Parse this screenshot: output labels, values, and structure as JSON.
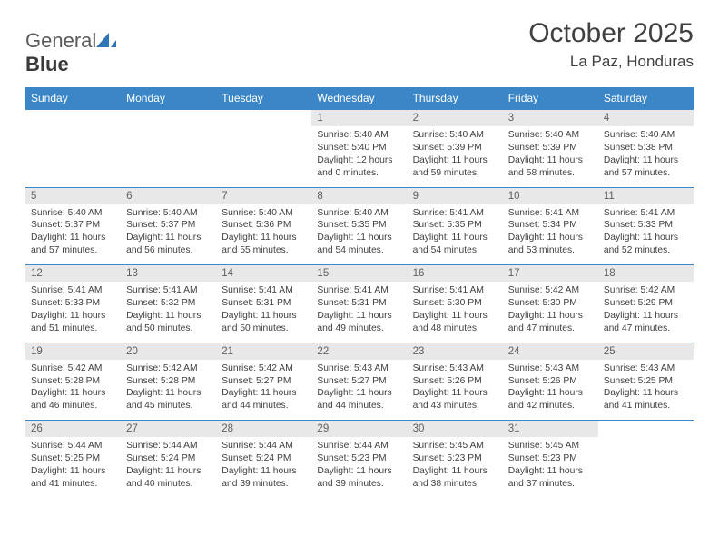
{
  "brand": {
    "part1": "General",
    "part2": "Blue"
  },
  "title": "October 2025",
  "location": "La Paz, Honduras",
  "colors": {
    "header_bg": "#3b86c6",
    "header_text": "#ffffff",
    "daynum_bg": "#e8e8e8",
    "daynum_text": "#606060",
    "body_text": "#404040",
    "divider": "#3b86c6",
    "logo_gray": "#5a5a5a",
    "logo_blue": "#2f74b5"
  },
  "dayNames": [
    "Sunday",
    "Monday",
    "Tuesday",
    "Wednesday",
    "Thursday",
    "Friday",
    "Saturday"
  ],
  "weeks": [
    {
      "nums": [
        "",
        "",
        "",
        "1",
        "2",
        "3",
        "4"
      ],
      "cells": [
        null,
        null,
        null,
        {
          "sunrise": "Sunrise: 5:40 AM",
          "sunset": "Sunset: 5:40 PM",
          "day1": "Daylight: 12 hours",
          "day2": "and 0 minutes."
        },
        {
          "sunrise": "Sunrise: 5:40 AM",
          "sunset": "Sunset: 5:39 PM",
          "day1": "Daylight: 11 hours",
          "day2": "and 59 minutes."
        },
        {
          "sunrise": "Sunrise: 5:40 AM",
          "sunset": "Sunset: 5:39 PM",
          "day1": "Daylight: 11 hours",
          "day2": "and 58 minutes."
        },
        {
          "sunrise": "Sunrise: 5:40 AM",
          "sunset": "Sunset: 5:38 PM",
          "day1": "Daylight: 11 hours",
          "day2": "and 57 minutes."
        }
      ]
    },
    {
      "nums": [
        "5",
        "6",
        "7",
        "8",
        "9",
        "10",
        "11"
      ],
      "cells": [
        {
          "sunrise": "Sunrise: 5:40 AM",
          "sunset": "Sunset: 5:37 PM",
          "day1": "Daylight: 11 hours",
          "day2": "and 57 minutes."
        },
        {
          "sunrise": "Sunrise: 5:40 AM",
          "sunset": "Sunset: 5:37 PM",
          "day1": "Daylight: 11 hours",
          "day2": "and 56 minutes."
        },
        {
          "sunrise": "Sunrise: 5:40 AM",
          "sunset": "Sunset: 5:36 PM",
          "day1": "Daylight: 11 hours",
          "day2": "and 55 minutes."
        },
        {
          "sunrise": "Sunrise: 5:40 AM",
          "sunset": "Sunset: 5:35 PM",
          "day1": "Daylight: 11 hours",
          "day2": "and 54 minutes."
        },
        {
          "sunrise": "Sunrise: 5:41 AM",
          "sunset": "Sunset: 5:35 PM",
          "day1": "Daylight: 11 hours",
          "day2": "and 54 minutes."
        },
        {
          "sunrise": "Sunrise: 5:41 AM",
          "sunset": "Sunset: 5:34 PM",
          "day1": "Daylight: 11 hours",
          "day2": "and 53 minutes."
        },
        {
          "sunrise": "Sunrise: 5:41 AM",
          "sunset": "Sunset: 5:33 PM",
          "day1": "Daylight: 11 hours",
          "day2": "and 52 minutes."
        }
      ]
    },
    {
      "nums": [
        "12",
        "13",
        "14",
        "15",
        "16",
        "17",
        "18"
      ],
      "cells": [
        {
          "sunrise": "Sunrise: 5:41 AM",
          "sunset": "Sunset: 5:33 PM",
          "day1": "Daylight: 11 hours",
          "day2": "and 51 minutes."
        },
        {
          "sunrise": "Sunrise: 5:41 AM",
          "sunset": "Sunset: 5:32 PM",
          "day1": "Daylight: 11 hours",
          "day2": "and 50 minutes."
        },
        {
          "sunrise": "Sunrise: 5:41 AM",
          "sunset": "Sunset: 5:31 PM",
          "day1": "Daylight: 11 hours",
          "day2": "and 50 minutes."
        },
        {
          "sunrise": "Sunrise: 5:41 AM",
          "sunset": "Sunset: 5:31 PM",
          "day1": "Daylight: 11 hours",
          "day2": "and 49 minutes."
        },
        {
          "sunrise": "Sunrise: 5:41 AM",
          "sunset": "Sunset: 5:30 PM",
          "day1": "Daylight: 11 hours",
          "day2": "and 48 minutes."
        },
        {
          "sunrise": "Sunrise: 5:42 AM",
          "sunset": "Sunset: 5:30 PM",
          "day1": "Daylight: 11 hours",
          "day2": "and 47 minutes."
        },
        {
          "sunrise": "Sunrise: 5:42 AM",
          "sunset": "Sunset: 5:29 PM",
          "day1": "Daylight: 11 hours",
          "day2": "and 47 minutes."
        }
      ]
    },
    {
      "nums": [
        "19",
        "20",
        "21",
        "22",
        "23",
        "24",
        "25"
      ],
      "cells": [
        {
          "sunrise": "Sunrise: 5:42 AM",
          "sunset": "Sunset: 5:28 PM",
          "day1": "Daylight: 11 hours",
          "day2": "and 46 minutes."
        },
        {
          "sunrise": "Sunrise: 5:42 AM",
          "sunset": "Sunset: 5:28 PM",
          "day1": "Daylight: 11 hours",
          "day2": "and 45 minutes."
        },
        {
          "sunrise": "Sunrise: 5:42 AM",
          "sunset": "Sunset: 5:27 PM",
          "day1": "Daylight: 11 hours",
          "day2": "and 44 minutes."
        },
        {
          "sunrise": "Sunrise: 5:43 AM",
          "sunset": "Sunset: 5:27 PM",
          "day1": "Daylight: 11 hours",
          "day2": "and 44 minutes."
        },
        {
          "sunrise": "Sunrise: 5:43 AM",
          "sunset": "Sunset: 5:26 PM",
          "day1": "Daylight: 11 hours",
          "day2": "and 43 minutes."
        },
        {
          "sunrise": "Sunrise: 5:43 AM",
          "sunset": "Sunset: 5:26 PM",
          "day1": "Daylight: 11 hours",
          "day2": "and 42 minutes."
        },
        {
          "sunrise": "Sunrise: 5:43 AM",
          "sunset": "Sunset: 5:25 PM",
          "day1": "Daylight: 11 hours",
          "day2": "and 41 minutes."
        }
      ]
    },
    {
      "nums": [
        "26",
        "27",
        "28",
        "29",
        "30",
        "31",
        ""
      ],
      "cells": [
        {
          "sunrise": "Sunrise: 5:44 AM",
          "sunset": "Sunset: 5:25 PM",
          "day1": "Daylight: 11 hours",
          "day2": "and 41 minutes."
        },
        {
          "sunrise": "Sunrise: 5:44 AM",
          "sunset": "Sunset: 5:24 PM",
          "day1": "Daylight: 11 hours",
          "day2": "and 40 minutes."
        },
        {
          "sunrise": "Sunrise: 5:44 AM",
          "sunset": "Sunset: 5:24 PM",
          "day1": "Daylight: 11 hours",
          "day2": "and 39 minutes."
        },
        {
          "sunrise": "Sunrise: 5:44 AM",
          "sunset": "Sunset: 5:23 PM",
          "day1": "Daylight: 11 hours",
          "day2": "and 39 minutes."
        },
        {
          "sunrise": "Sunrise: 5:45 AM",
          "sunset": "Sunset: 5:23 PM",
          "day1": "Daylight: 11 hours",
          "day2": "and 38 minutes."
        },
        {
          "sunrise": "Sunrise: 5:45 AM",
          "sunset": "Sunset: 5:23 PM",
          "day1": "Daylight: 11 hours",
          "day2": "and 37 minutes."
        },
        null
      ]
    }
  ]
}
